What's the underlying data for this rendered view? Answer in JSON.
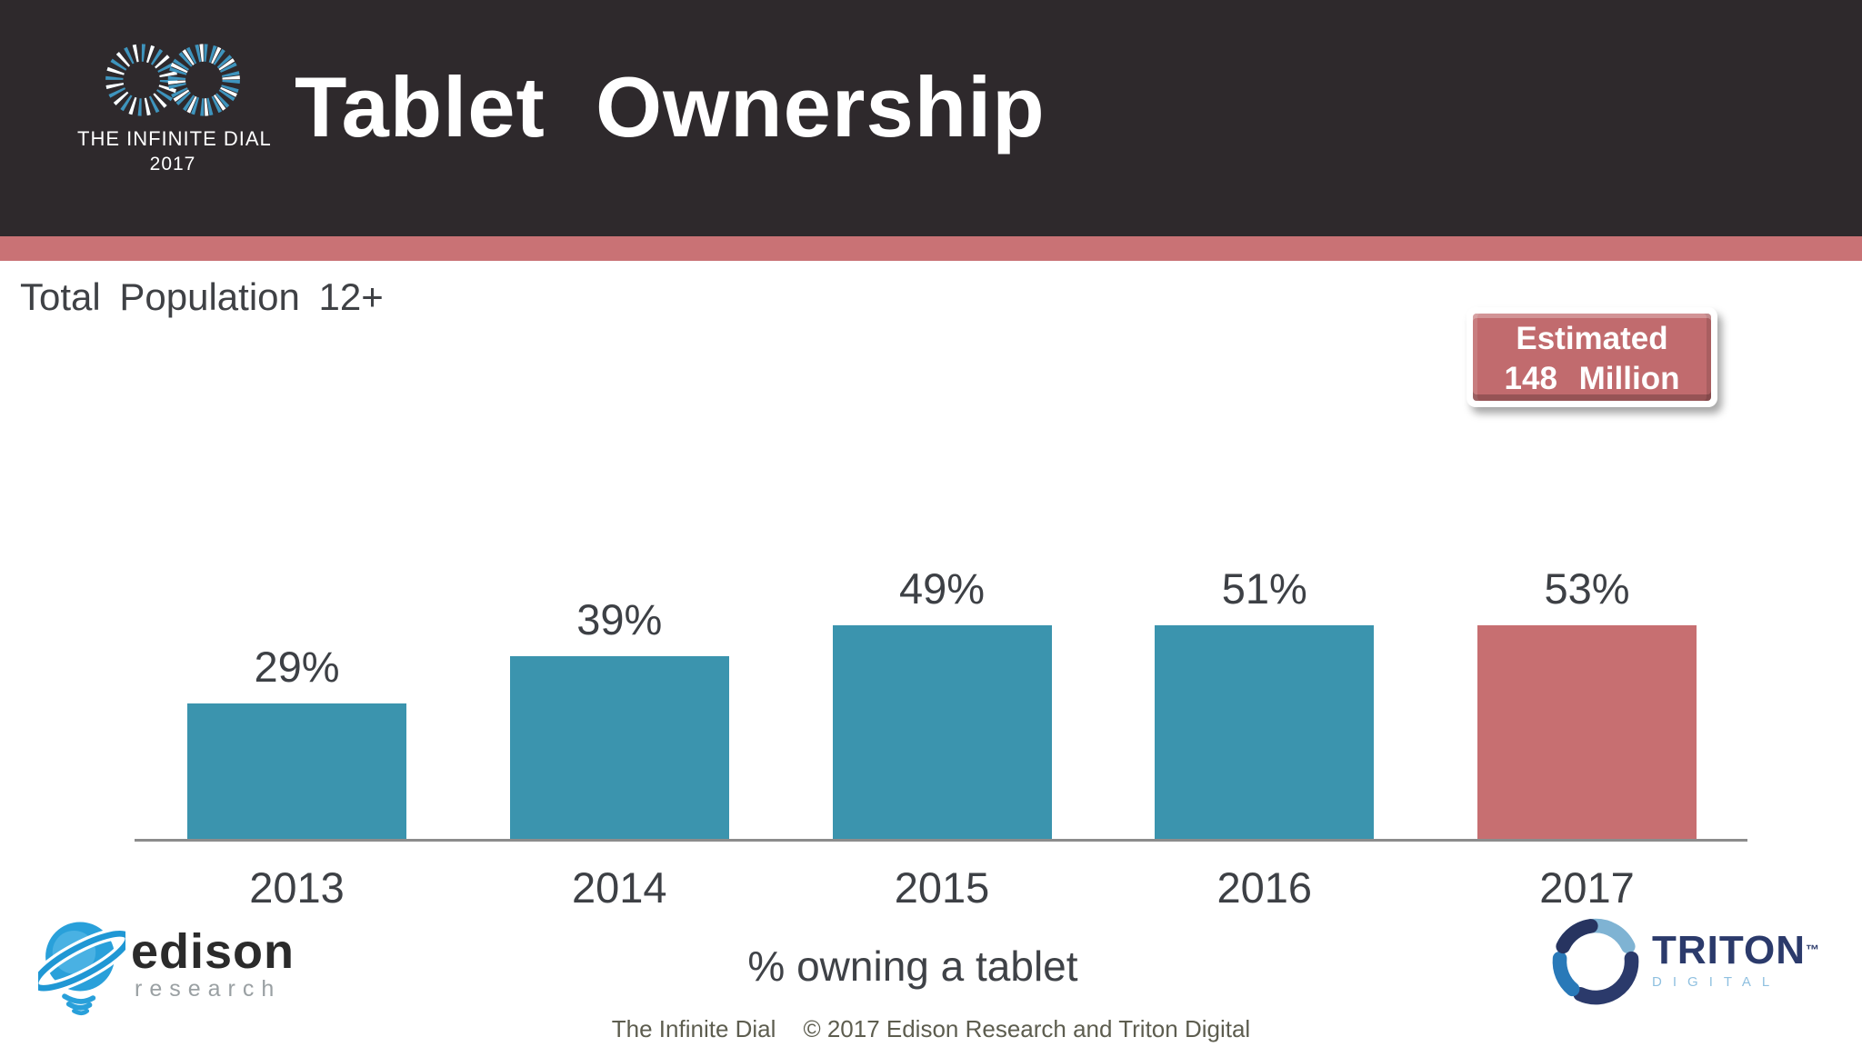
{
  "header": {
    "title": "Tablet Ownership",
    "logo": {
      "line1": "THE INFINITE DIAL",
      "line2": "2017"
    }
  },
  "subtitle": "Total Population 12+",
  "callout": {
    "line1": "Estimated",
    "line2": "148 Million"
  },
  "chart_data": {
    "type": "bar",
    "title": "Tablet Ownership",
    "categories": [
      "2013",
      "2014",
      "2015",
      "2016",
      "2017"
    ],
    "values": [
      29,
      39,
      49,
      51,
      53
    ],
    "unit": "%",
    "xlabel": "% owning a tablet",
    "ylabel": "",
    "ylim": [
      0,
      60
    ],
    "grid": false,
    "legend": false,
    "bar_colors": [
      "#3b94ae",
      "#3b94ae",
      "#3b94ae",
      "#3b94ae",
      "#c76f71"
    ],
    "annotation": "Estimated 148 Million"
  },
  "footer": {
    "title": "The Infinite Dial",
    "copyright": "© 2017 Edison Research and Triton Digital"
  },
  "logos": {
    "edison": {
      "name": "edison",
      "sub": "research"
    },
    "triton": {
      "name": "TRITON",
      "tm": "™",
      "sub": "DIGITAL"
    }
  },
  "colors": {
    "header_bg": "#2e292c",
    "accent_strip": "#c97275",
    "bar_teal": "#3b94ae",
    "bar_rose": "#c76f71",
    "callout_bg": "#c16b6e",
    "axis": "#8c8c8c"
  }
}
